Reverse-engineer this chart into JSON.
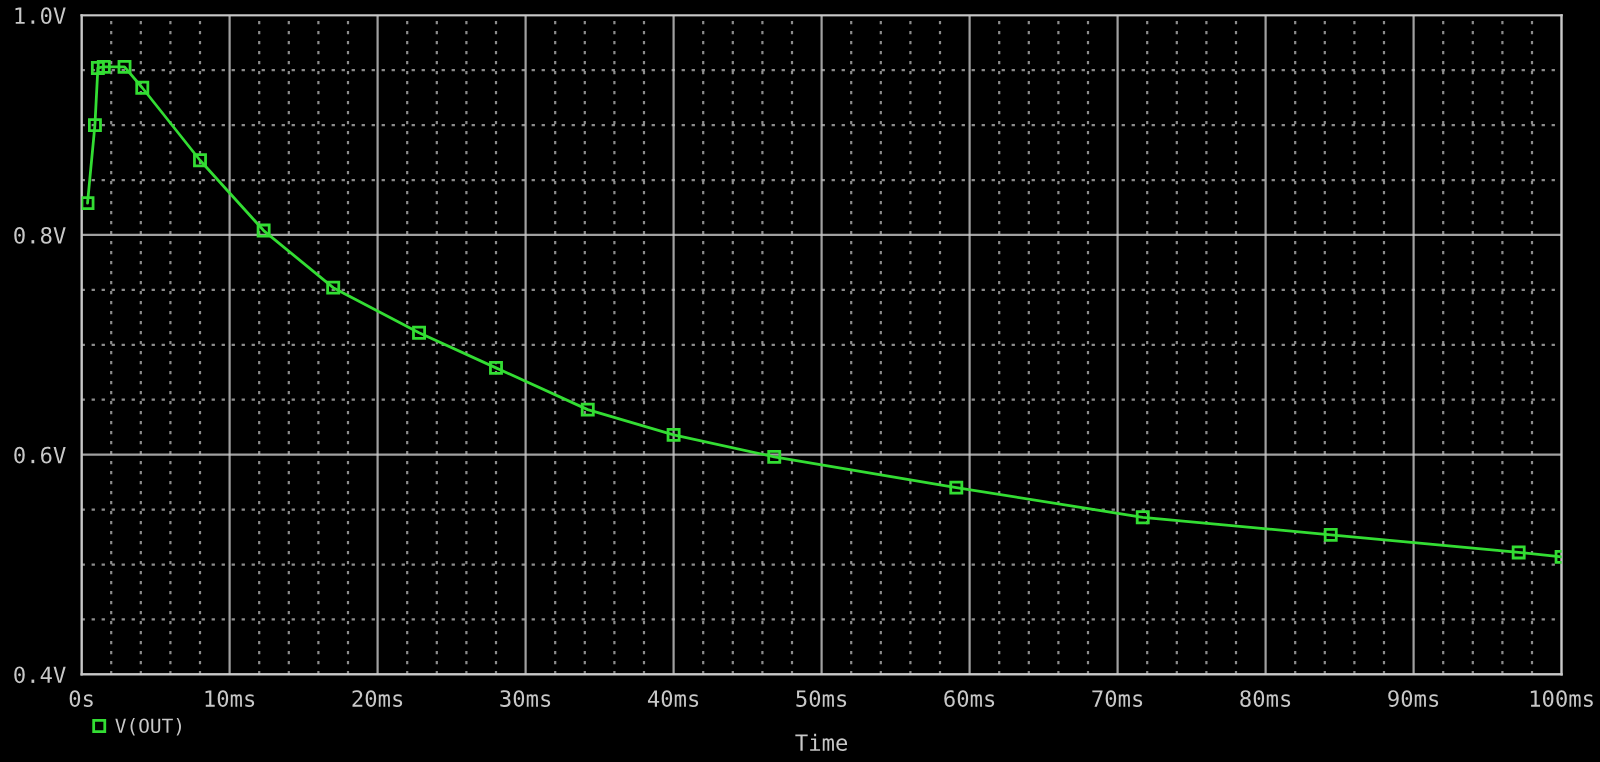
{
  "chart_data": {
    "type": "line",
    "xlabel": "Time",
    "x": [
      0.4,
      0.9,
      1.1,
      1.5,
      2.9,
      4.1,
      8,
      12.3,
      17,
      22.8,
      28,
      34.2,
      40,
      46.8,
      59.1,
      71.7,
      84.4,
      97.1,
      100
    ],
    "series": [
      {
        "name": "V(OUT)",
        "color": "#33dd33",
        "values": [
          0.829,
          0.9,
          0.952,
          0.953,
          0.953,
          0.934,
          0.868,
          0.804,
          0.752,
          0.711,
          0.679,
          0.641,
          0.618,
          0.598,
          0.57,
          0.543,
          0.527,
          0.511,
          0.507
        ]
      }
    ],
    "marker": "square",
    "line_style": "solid",
    "grid": true,
    "legend": "bottom left",
    "xlim": [
      0,
      100
    ],
    "ylim": [
      0.4,
      1.0
    ],
    "xticks": [
      {
        "value": 0,
        "label": "0s"
      },
      {
        "value": 2,
        "label": null
      },
      {
        "value": 4,
        "label": null
      },
      {
        "value": 6,
        "label": null
      },
      {
        "value": 8,
        "label": null
      },
      {
        "value": 10,
        "label": "10ms"
      },
      {
        "value": 12,
        "label": null
      },
      {
        "value": 14,
        "label": null
      },
      {
        "value": 16,
        "label": null
      },
      {
        "value": 18,
        "label": null
      },
      {
        "value": 20,
        "label": "20ms"
      },
      {
        "value": 22,
        "label": null
      },
      {
        "value": 24,
        "label": null
      },
      {
        "value": 26,
        "label": null
      },
      {
        "value": 28,
        "label": null
      },
      {
        "value": 30,
        "label": "30ms"
      },
      {
        "value": 32,
        "label": null
      },
      {
        "value": 34,
        "label": null
      },
      {
        "value": 36,
        "label": null
      },
      {
        "value": 38,
        "label": null
      },
      {
        "value": 40,
        "label": "40ms"
      },
      {
        "value": 42,
        "label": null
      },
      {
        "value": 44,
        "label": null
      },
      {
        "value": 46,
        "label": null
      },
      {
        "value": 48,
        "label": null
      },
      {
        "value": 50,
        "label": "50ms"
      },
      {
        "value": 52,
        "label": null
      },
      {
        "value": 54,
        "label": null
      },
      {
        "value": 56,
        "label": null
      },
      {
        "value": 58,
        "label": null
      },
      {
        "value": 60,
        "label": "60ms"
      },
      {
        "value": 62,
        "label": null
      },
      {
        "value": 64,
        "label": null
      },
      {
        "value": 66,
        "label": null
      },
      {
        "value": 68,
        "label": null
      },
      {
        "value": 70,
        "label": "70ms"
      },
      {
        "value": 72,
        "label": null
      },
      {
        "value": 74,
        "label": null
      },
      {
        "value": 76,
        "label": null
      },
      {
        "value": 78,
        "label": null
      },
      {
        "value": 80,
        "label": "80ms"
      },
      {
        "value": 82,
        "label": null
      },
      {
        "value": 84,
        "label": null
      },
      {
        "value": 86,
        "label": null
      },
      {
        "value": 88,
        "label": null
      },
      {
        "value": 90,
        "label": "90ms"
      },
      {
        "value": 92,
        "label": null
      },
      {
        "value": 94,
        "label": null
      },
      {
        "value": 96,
        "label": null
      },
      {
        "value": 98,
        "label": null
      },
      {
        "value": 100,
        "label": "100ms"
      }
    ],
    "yticks": [
      {
        "value": 0.4,
        "label": "0.4V"
      },
      {
        "value": 0.45,
        "label": null
      },
      {
        "value": 0.5,
        "label": null
      },
      {
        "value": 0.55,
        "label": null
      },
      {
        "value": 0.6,
        "label": "0.6V"
      },
      {
        "value": 0.65,
        "label": null
      },
      {
        "value": 0.7,
        "label": null
      },
      {
        "value": 0.75,
        "label": null
      },
      {
        "value": 0.8,
        "label": "0.8V"
      },
      {
        "value": 0.85,
        "label": null
      },
      {
        "value": 0.9,
        "label": null
      },
      {
        "value": 0.95,
        "label": null
      },
      {
        "value": 1.0,
        "label": "1.0V"
      }
    ]
  }
}
